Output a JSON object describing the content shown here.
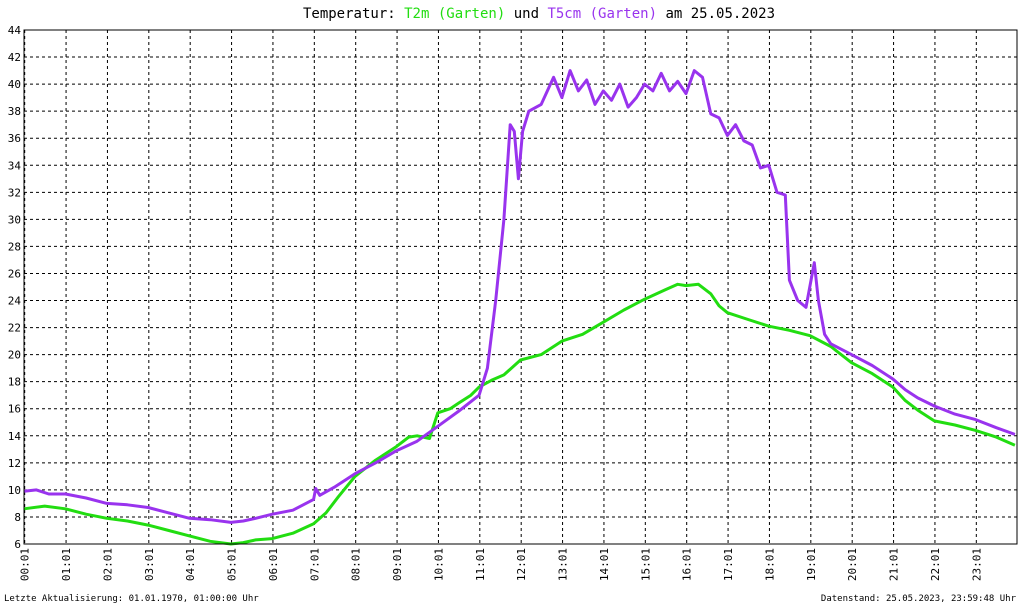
{
  "title": {
    "prefix": "Temperatur: ",
    "series1": "T2m (Garten)",
    "middle": " und ",
    "series2": "T5cm (Garten)",
    "suffix": " am 25.05.2023"
  },
  "footer": {
    "left": "Letzte Aktualisierung: 01.01.1970, 01:00:00 Uhr",
    "right": "Datenstand: 25.05.2023, 23:59:48 Uhr"
  },
  "chart_data": {
    "type": "line",
    "title": "Temperatur: T2m (Garten) und T5cm (Garten) am 25.05.2023",
    "xlabel": "",
    "ylabel": "",
    "xlim": [
      0,
      24
    ],
    "ylim": [
      6,
      44
    ],
    "grid": true,
    "legend": "title",
    "x_ticks": [
      "00:01",
      "01:01",
      "02:01",
      "03:01",
      "04:01",
      "05:01",
      "06:01",
      "07:01",
      "08:01",
      "09:01",
      "10:01",
      "11:01",
      "12:01",
      "13:01",
      "14:01",
      "15:01",
      "16:01",
      "17:01",
      "18:01",
      "19:01",
      "20:01",
      "21:01",
      "22:01",
      "23:01"
    ],
    "y_ticks": [
      6,
      8,
      10,
      12,
      14,
      16,
      18,
      20,
      22,
      24,
      26,
      28,
      30,
      32,
      34,
      36,
      38,
      40,
      42,
      44
    ],
    "series": [
      {
        "name": "T2m (Garten)",
        "color": "#22dd11",
        "x": [
          0.0,
          0.5,
          1.0,
          1.5,
          2.0,
          2.5,
          3.0,
          3.5,
          4.0,
          4.5,
          5.0,
          5.3,
          5.6,
          6.0,
          6.5,
          7.0,
          7.3,
          7.6,
          8.0,
          8.5,
          9.0,
          9.3,
          9.5,
          9.8,
          10.0,
          10.3,
          10.5,
          10.8,
          11.0,
          11.3,
          11.6,
          12.0,
          12.5,
          13.0,
          13.5,
          14.0,
          14.5,
          15.0,
          15.5,
          15.8,
          16.0,
          16.3,
          16.6,
          16.8,
          17.0,
          17.5,
          18.0,
          18.5,
          19.0,
          19.5,
          20.0,
          20.5,
          21.0,
          21.3,
          21.6,
          22.0,
          22.5,
          23.0,
          23.5,
          23.95
        ],
        "values": [
          8.6,
          8.8,
          8.6,
          8.2,
          7.9,
          7.7,
          7.4,
          7.0,
          6.6,
          6.2,
          6.0,
          6.1,
          6.3,
          6.4,
          6.8,
          7.5,
          8.3,
          9.5,
          11.0,
          12.2,
          13.2,
          13.9,
          14.0,
          13.8,
          15.7,
          16.0,
          16.4,
          17.0,
          17.6,
          18.1,
          18.5,
          19.6,
          20.0,
          21.0,
          21.5,
          22.4,
          23.3,
          24.1,
          24.8,
          25.2,
          25.1,
          25.2,
          24.5,
          23.6,
          23.1,
          22.6,
          22.1,
          21.8,
          21.4,
          20.6,
          19.4,
          18.6,
          17.6,
          16.6,
          15.9,
          15.1,
          14.8,
          14.4,
          13.9,
          13.3
        ]
      },
      {
        "name": "T5cm (Garten)",
        "color": "#9933ee",
        "x": [
          0.0,
          0.3,
          0.6,
          1.0,
          1.5,
          2.0,
          2.5,
          3.0,
          3.5,
          4.0,
          4.5,
          5.0,
          5.3,
          5.6,
          6.0,
          6.5,
          7.0,
          7.05,
          7.15,
          7.5,
          8.0,
          8.5,
          9.0,
          9.5,
          10.0,
          10.5,
          11.0,
          11.2,
          11.4,
          11.6,
          11.75,
          11.85,
          11.95,
          12.05,
          12.2,
          12.5,
          12.8,
          13.0,
          13.2,
          13.4,
          13.6,
          13.8,
          14.0,
          14.2,
          14.4,
          14.6,
          14.8,
          15.0,
          15.2,
          15.4,
          15.6,
          15.8,
          16.0,
          16.2,
          16.4,
          16.6,
          16.8,
          17.0,
          17.2,
          17.4,
          17.6,
          17.8,
          18.0,
          18.2,
          18.4,
          18.5,
          18.7,
          18.9,
          19.1,
          19.2,
          19.35,
          19.5,
          20.0,
          20.5,
          21.0,
          21.3,
          21.6,
          22.0,
          22.5,
          23.0,
          23.5,
          23.95
        ],
        "values": [
          9.9,
          10.0,
          9.7,
          9.7,
          9.4,
          9.0,
          8.9,
          8.7,
          8.3,
          7.9,
          7.8,
          7.6,
          7.7,
          7.9,
          8.2,
          8.5,
          9.3,
          10.1,
          9.6,
          10.2,
          11.2,
          12.0,
          12.9,
          13.6,
          14.7,
          15.8,
          17.0,
          19.0,
          24.0,
          30.0,
          37.0,
          36.5,
          33.0,
          36.5,
          38.0,
          38.5,
          40.5,
          39.0,
          41.0,
          39.5,
          40.3,
          38.5,
          39.5,
          38.8,
          40.0,
          38.3,
          39.0,
          40.0,
          39.5,
          40.8,
          39.5,
          40.2,
          39.3,
          41.0,
          40.5,
          37.8,
          37.5,
          36.2,
          37.0,
          35.8,
          35.5,
          33.8,
          34.0,
          32.0,
          31.8,
          25.5,
          24.0,
          23.5,
          26.8,
          24.0,
          21.5,
          20.8,
          20.0,
          19.2,
          18.2,
          17.4,
          16.8,
          16.2,
          15.6,
          15.2,
          14.6,
          14.1
        ]
      }
    ]
  }
}
